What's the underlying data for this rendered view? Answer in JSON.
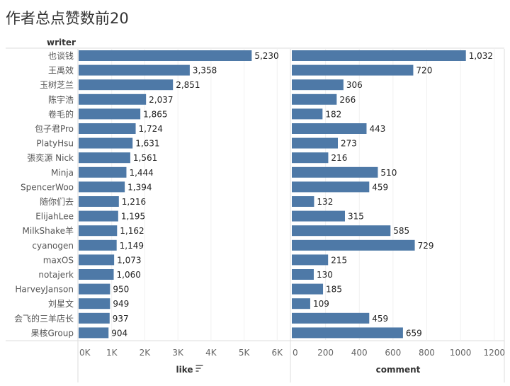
{
  "title": "作者总点赞数前20",
  "chart_data": {
    "type": "bar",
    "orientation": "horizontal",
    "row_header": "writer",
    "categories": [
      "也谈钱",
      "王禹效",
      "玉树芝兰",
      "陈宇浩",
      "卷毛的",
      "包子君Pro",
      "PlatyHsu",
      "張奕源 Nick",
      "Minja",
      "SpencerWoo",
      "随你们去",
      "ElijahLee",
      "MilkShake羊",
      "cyanogen",
      "maxOS",
      "notajerk",
      "HarveyJanson",
      "刘星文",
      "会飞的三羊店长",
      "果核Group"
    ],
    "series": [
      {
        "name": "like",
        "values": [
          5230,
          3358,
          2851,
          2037,
          1865,
          1724,
          1631,
          1561,
          1444,
          1394,
          1216,
          1195,
          1162,
          1149,
          1073,
          1060,
          950,
          949,
          937,
          904
        ],
        "labels": [
          "5,230",
          "3,358",
          "2,851",
          "2,037",
          "1,865",
          "1,724",
          "1,631",
          "1,561",
          "1,444",
          "1,394",
          "1,216",
          "1,195",
          "1,162",
          "1,149",
          "1,073",
          "1,060",
          "950",
          "949",
          "937",
          "904"
        ],
        "ticks": [
          "0K",
          "1K",
          "2K",
          "3K",
          "4K",
          "5K",
          "6K"
        ],
        "tick_values": [
          0,
          1000,
          2000,
          3000,
          4000,
          5000,
          6000
        ],
        "xlim": [
          0,
          6400
        ],
        "sorted": true
      },
      {
        "name": "comment",
        "values": [
          1032,
          720,
          306,
          266,
          182,
          443,
          273,
          216,
          510,
          459,
          132,
          315,
          585,
          729,
          215,
          130,
          185,
          109,
          459,
          659
        ],
        "labels": [
          "1,032",
          "720",
          "306",
          "266",
          "182",
          "443",
          "273",
          "216",
          "510",
          "459",
          "132",
          "315",
          "585",
          "729",
          "215",
          "130",
          "185",
          "109",
          "459",
          "659"
        ],
        "ticks": [
          "0",
          "200",
          "400",
          "600",
          "800",
          "1000",
          "1200"
        ],
        "tick_values": [
          0,
          200,
          400,
          600,
          800,
          1000,
          1200
        ],
        "xlim": [
          0,
          1260
        ]
      }
    ],
    "bar_color": "#4e79a7",
    "grid": true
  }
}
